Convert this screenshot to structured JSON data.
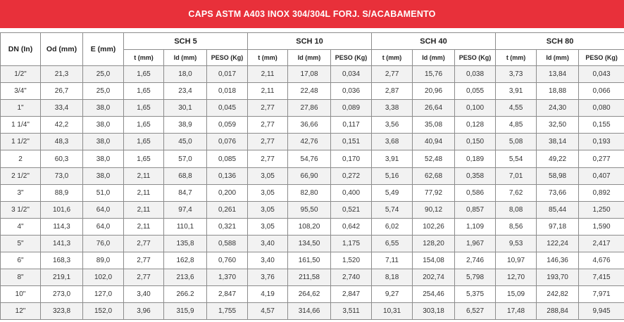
{
  "title": "CAPS ASTM A403 INOX 304/304L FORJ. S/ACABAMENTO",
  "headers": {
    "dn": "DN (In)",
    "od": "Od (mm)",
    "e": "E (mm)",
    "groups": [
      "SCH 5",
      "SCH 10",
      "SCH 40",
      "SCH 80"
    ],
    "sub": [
      "t (mm)",
      "Id (mm)",
      "PESO (Kg)"
    ]
  },
  "rows": [
    [
      "1/2\"",
      "21,3",
      "25,0",
      "1,65",
      "18,0",
      "0,017",
      "2,11",
      "17,08",
      "0,034",
      "2,77",
      "15,76",
      "0,038",
      "3,73",
      "13,84",
      "0,043"
    ],
    [
      "3/4\"",
      "26,7",
      "25,0",
      "1,65",
      "23,4",
      "0,018",
      "2,11",
      "22,48",
      "0,036",
      "2,87",
      "20,96",
      "0,055",
      "3,91",
      "18,88",
      "0,066"
    ],
    [
      "1\"",
      "33,4",
      "38,0",
      "1,65",
      "30,1",
      "0,045",
      "2,77",
      "27,86",
      "0,089",
      "3,38",
      "26,64",
      "0,100",
      "4,55",
      "24,30",
      "0,080"
    ],
    [
      "1 1/4\"",
      "42,2",
      "38,0",
      "1,65",
      "38,9",
      "0,059",
      "2,77",
      "36,66",
      "0,117",
      "3,56",
      "35,08",
      "0,128",
      "4,85",
      "32,50",
      "0,155"
    ],
    [
      "1 1/2\"",
      "48,3",
      "38,0",
      "1,65",
      "45,0",
      "0,076",
      "2,77",
      "42,76",
      "0,151",
      "3,68",
      "40,94",
      "0,150",
      "5,08",
      "38,14",
      "0,193"
    ],
    [
      "2",
      "60,3",
      "38,0",
      "1,65",
      "57,0",
      "0,085",
      "2,77",
      "54,76",
      "0,170",
      "3,91",
      "52,48",
      "0,189",
      "5,54",
      "49,22",
      "0,277"
    ],
    [
      "2 1/2\"",
      "73,0",
      "38,0",
      "2,11",
      "68,8",
      "0,136",
      "3,05",
      "66,90",
      "0,272",
      "5,16",
      "62,68",
      "0,358",
      "7,01",
      "58,98",
      "0,407"
    ],
    [
      "3\"",
      "88,9",
      "51,0",
      "2,11",
      "84,7",
      "0,200",
      "3,05",
      "82,80",
      "0,400",
      "5,49",
      "77,92",
      "0,586",
      "7,62",
      "73,66",
      "0,892"
    ],
    [
      "3 1/2\"",
      "101,6",
      "64,0",
      "2,11",
      "97,4",
      "0,261",
      "3,05",
      "95,50",
      "0,521",
      "5,74",
      "90,12",
      "0,857",
      "8,08",
      "85,44",
      "1,250"
    ],
    [
      "4\"",
      "114,3",
      "64,0",
      "2,11",
      "110,1",
      "0,321",
      "3,05",
      "108,20",
      "0,642",
      "6,02",
      "102,26",
      "1,109",
      "8,56",
      "97,18",
      "1,590"
    ],
    [
      "5\"",
      "141,3",
      "76,0",
      "2,77",
      "135,8",
      "0,588",
      "3,40",
      "134,50",
      "1,175",
      "6,55",
      "128,20",
      "1,967",
      "9,53",
      "122,24",
      "2,417"
    ],
    [
      "6\"",
      "168,3",
      "89,0",
      "2,77",
      "162,8",
      "0,760",
      "3,40",
      "161,50",
      "1,520",
      "7,11",
      "154,08",
      "2,746",
      "10,97",
      "146,36",
      "4,676"
    ],
    [
      "8\"",
      "219,1",
      "102,0",
      "2,77",
      "213,6",
      "1,370",
      "3,76",
      "211,58",
      "2,740",
      "8,18",
      "202,74",
      "5,798",
      "12,70",
      "193,70",
      "7,415"
    ],
    [
      "10\"",
      "273,0",
      "127,0",
      "3,40",
      "266.2",
      "2,847",
      "4,19",
      "264,62",
      "2,847",
      "9,27",
      "254,46",
      "5,375",
      "15,09",
      "242,82",
      "7,971"
    ],
    [
      "12\"",
      "323,8",
      "152,0",
      "3,96",
      "315,9",
      "1,755",
      "4,57",
      "314,66",
      "3,511",
      "10,31",
      "303,18",
      "6,527",
      "17,48",
      "288,84",
      "9,945"
    ]
  ]
}
